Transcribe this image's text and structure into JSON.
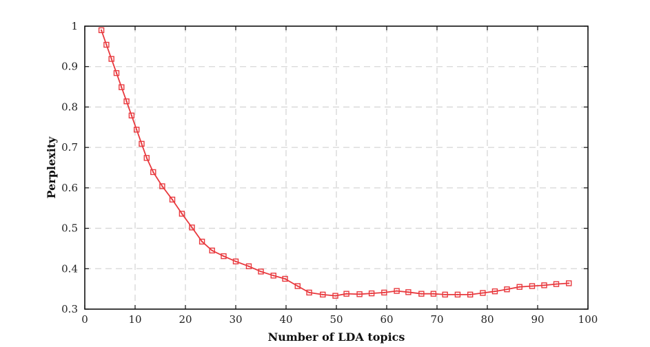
{
  "chart_data": {
    "type": "line",
    "title": "",
    "xlabel": "Number of LDA topics",
    "ylabel": "Perplexity",
    "xlim": [
      0,
      100
    ],
    "ylim": [
      0.3,
      1
    ],
    "xticks": [
      0,
      10,
      20,
      30,
      40,
      50,
      60,
      70,
      80,
      90,
      100
    ],
    "yticks": [
      0.3,
      0.4,
      0.5,
      0.6,
      0.7,
      0.8,
      0.9,
      1
    ],
    "ytick_labels": [
      "0.3",
      "0.4",
      "0.5",
      "0.6",
      "0.7",
      "0.8",
      "0.9",
      "1"
    ],
    "grid": true,
    "legend": "none",
    "series": [
      {
        "color": "#e8383d",
        "marker": "square",
        "points": [
          [
            3.3,
            0.99
          ],
          [
            4.3,
            0.954
          ],
          [
            5.3,
            0.919
          ],
          [
            6.3,
            0.884
          ],
          [
            7.3,
            0.849
          ],
          [
            8.3,
            0.814
          ],
          [
            9.3,
            0.779
          ],
          [
            10.3,
            0.744
          ],
          [
            11.3,
            0.709
          ],
          [
            12.3,
            0.674
          ],
          [
            13.6,
            0.639
          ],
          [
            15.4,
            0.604
          ],
          [
            17.4,
            0.571
          ],
          [
            19.3,
            0.536
          ],
          [
            21.3,
            0.502
          ],
          [
            23.3,
            0.467
          ],
          [
            25.3,
            0.445
          ],
          [
            27.6,
            0.431
          ],
          [
            30.0,
            0.418
          ],
          [
            32.6,
            0.406
          ],
          [
            35.0,
            0.393
          ],
          [
            37.5,
            0.383
          ],
          [
            39.8,
            0.375
          ],
          [
            42.3,
            0.357
          ],
          [
            44.6,
            0.341
          ],
          [
            47.3,
            0.336
          ],
          [
            49.8,
            0.333
          ],
          [
            52.0,
            0.338
          ],
          [
            54.6,
            0.337
          ],
          [
            57.0,
            0.339
          ],
          [
            59.5,
            0.341
          ],
          [
            62.0,
            0.345
          ],
          [
            64.3,
            0.342
          ],
          [
            66.9,
            0.338
          ],
          [
            69.3,
            0.338
          ],
          [
            71.6,
            0.336
          ],
          [
            74.1,
            0.336
          ],
          [
            76.6,
            0.336
          ],
          [
            79.1,
            0.34
          ],
          [
            81.5,
            0.344
          ],
          [
            83.9,
            0.349
          ],
          [
            86.4,
            0.355
          ],
          [
            88.9,
            0.357
          ],
          [
            91.3,
            0.359
          ],
          [
            93.7,
            0.362
          ],
          [
            96.2,
            0.364
          ]
        ]
      }
    ]
  }
}
